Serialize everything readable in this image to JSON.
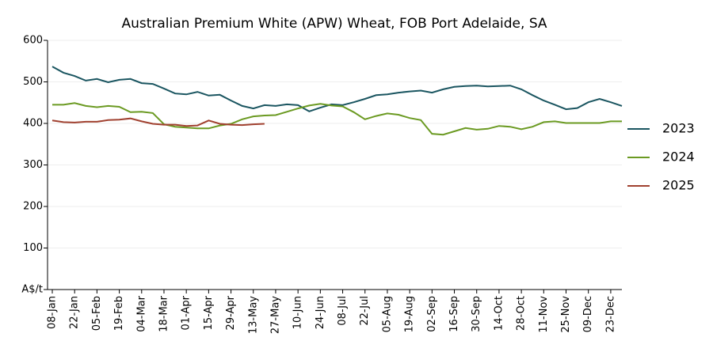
{
  "chart_data": {
    "type": "line",
    "title": "Australian Premium White (APW) Wheat, FOB Port Adelaide, SA",
    "categories": [
      "08-Jan",
      null,
      "22-Jan",
      null,
      "05-Feb",
      null,
      "19-Feb",
      null,
      "04-Mar",
      null,
      "18-Mar",
      null,
      "01-Apr",
      null,
      "15-Apr",
      null,
      "29-Apr",
      null,
      "13-May",
      null,
      "27-May",
      null,
      "10-Jun",
      null,
      "24-Jun",
      null,
      "08-Jul",
      null,
      "22-Jul",
      null,
      "05-Aug",
      null,
      "19-Aug",
      null,
      "02-Sep",
      null,
      "16-Sep",
      null,
      "30-Sep",
      null,
      "14-Oct",
      null,
      "28-Oct",
      null,
      "11-Nov",
      null,
      "25-Nov",
      null,
      "09-Dec",
      null,
      "23-Dec",
      null
    ],
    "series": [
      {
        "name": "2023",
        "color": "#1a5560",
        "values": [
          537,
          522,
          514,
          503,
          507,
          499,
          505,
          507,
          497,
          495,
          484,
          472,
          470,
          476,
          467,
          469,
          455,
          442,
          436,
          444,
          442,
          446,
          444,
          429,
          438,
          446,
          444,
          451,
          459,
          468,
          470,
          474,
          477,
          479,
          474,
          482,
          488,
          490,
          491,
          489,
          490,
          491,
          482,
          468,
          455,
          445,
          434,
          437,
          451,
          459,
          451,
          442
        ]
      },
      {
        "name": "2024",
        "color": "#6b9a22",
        "values": [
          445,
          445,
          449,
          442,
          439,
          442,
          440,
          427,
          428,
          425,
          398,
          392,
          390,
          388,
          388,
          395,
          399,
          410,
          417,
          419,
          420,
          428,
          436,
          443,
          447,
          443,
          441,
          427,
          410,
          418,
          424,
          421,
          413,
          408,
          375,
          373,
          381,
          389,
          385,
          387,
          394,
          392,
          386,
          392,
          403,
          405,
          401,
          401,
          401,
          401,
          405,
          405
        ]
      },
      {
        "name": "2025",
        "color": "#a0402f",
        "values": [
          407,
          403,
          402,
          404,
          404,
          408,
          409,
          412,
          405,
          399,
          397,
          397,
          394,
          395,
          407,
          399,
          397,
          396,
          398,
          399,
          null,
          null,
          null,
          null,
          null,
          null,
          null,
          null,
          null,
          null,
          null,
          null,
          null,
          null,
          null,
          null,
          null,
          null,
          null,
          null,
          null,
          null,
          null,
          null,
          null,
          null,
          null,
          null,
          null,
          null,
          null,
          null
        ]
      }
    ],
    "ylim": [
      0,
      600
    ],
    "yticks": [
      {
        "value": 0,
        "label": "A$/t"
      },
      100,
      200,
      300,
      400,
      500,
      600
    ],
    "grid": true,
    "legend": "right"
  }
}
